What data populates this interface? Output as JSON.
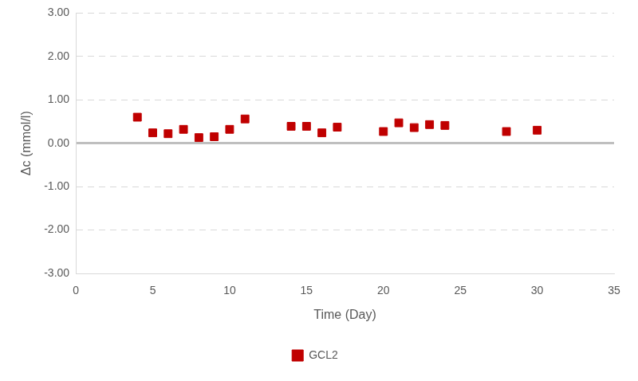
{
  "chart_data": {
    "type": "scatter",
    "x_label": "Time (Day)",
    "y_label": "Δc (mmol/l)",
    "series": [
      {
        "name": "GCL2",
        "color": "#c00000",
        "marker": "square",
        "x": [
          4,
          5,
          6,
          7,
          8,
          9,
          10,
          11,
          14,
          15,
          16,
          17,
          20,
          21,
          22,
          23,
          24,
          28,
          30
        ],
        "values": [
          0.6,
          0.24,
          0.22,
          0.32,
          0.13,
          0.15,
          0.32,
          0.56,
          0.39,
          0.39,
          0.24,
          0.37,
          0.27,
          0.47,
          0.36,
          0.43,
          0.41,
          0.27,
          0.3
        ]
      }
    ],
    "xlim": [
      0,
      35
    ],
    "xticks": [
      0,
      5,
      10,
      15,
      20,
      25,
      30,
      35
    ],
    "ylim": [
      -3,
      3
    ],
    "yticks": [
      {
        "value": -3,
        "label": "-3.00"
      },
      {
        "value": -2,
        "label": "-2.00"
      },
      {
        "value": -1,
        "label": "-1.00"
      },
      {
        "value": 0,
        "label": "0.00"
      },
      {
        "value": 1,
        "label": "1.00"
      },
      {
        "value": 2,
        "label": "2.00"
      },
      {
        "value": 3,
        "label": "3.00"
      }
    ],
    "grid": true,
    "legend": "bottom"
  }
}
